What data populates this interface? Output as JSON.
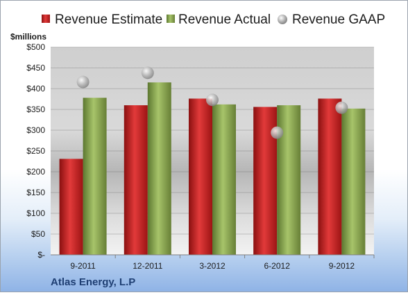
{
  "chart_data": {
    "type": "bar",
    "unit_label": "$millions",
    "company": "Atlas Energy, L.P",
    "categories": [
      "9-2011",
      "12-2011",
      "3-2012",
      "6-2012",
      "9-2012"
    ],
    "series": [
      {
        "name": "Revenue Estimate",
        "kind": "bar",
        "color": "#d42a2a",
        "values": [
          231,
          360,
          376,
          356,
          376
        ]
      },
      {
        "name": "Revenue Actual",
        "kind": "bar",
        "color": "#8caa4e",
        "values": [
          378,
          415,
          362,
          360,
          352
        ]
      },
      {
        "name": "Revenue GAAP",
        "kind": "marker",
        "color": "#b9b9b9",
        "values": [
          416,
          438,
          373,
          294,
          354
        ]
      }
    ],
    "ylim": [
      0,
      500
    ],
    "yticks": [
      0,
      50,
      100,
      150,
      200,
      250,
      300,
      350,
      400,
      450,
      500
    ],
    "ytick_labels": [
      "$-",
      "$50",
      "$100",
      "$150",
      "$200",
      "$250",
      "$300",
      "$350",
      "$400",
      "$450",
      "$500"
    ],
    "grid": true,
    "legend_position": "top"
  }
}
